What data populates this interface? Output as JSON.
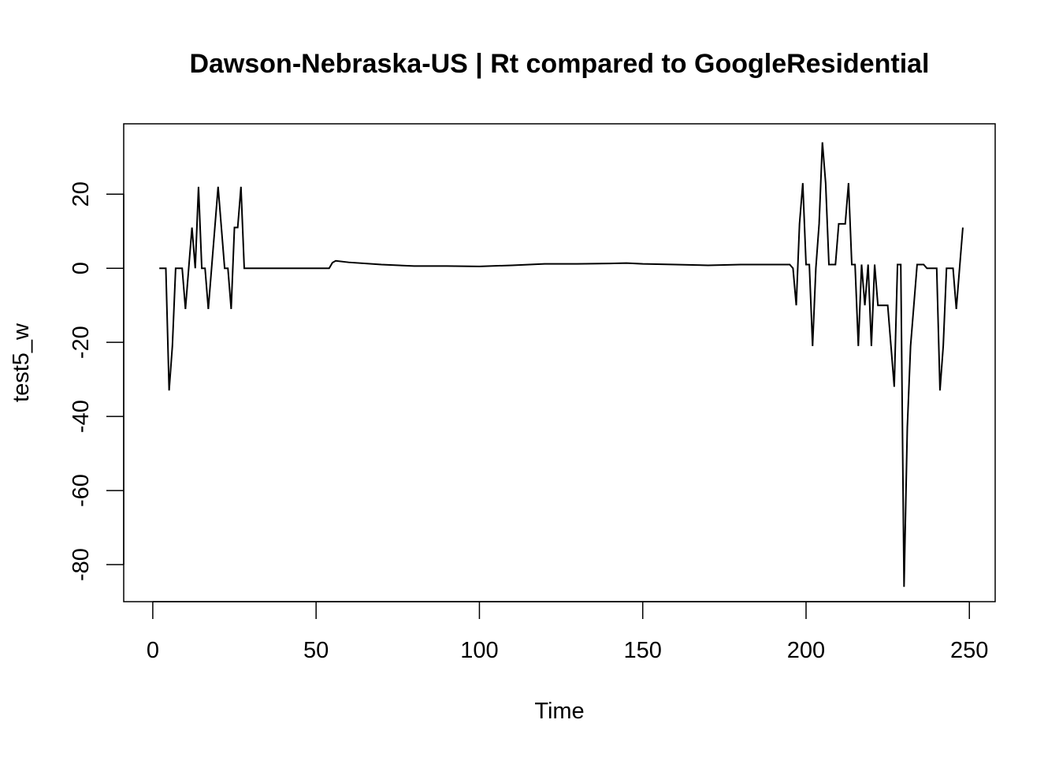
{
  "chart_data": {
    "type": "line",
    "title": "Dawson-Nebraska-US | Rt compared to GoogleResidential",
    "xlabel": "Time",
    "ylabel": "test5_w",
    "xlim": [
      -8.9,
      257.9
    ],
    "ylim": [
      -90,
      39
    ],
    "x_ticks": [
      0,
      50,
      100,
      150,
      200,
      250
    ],
    "y_ticks": [
      -80,
      -60,
      -40,
      -20,
      0,
      20
    ],
    "x_tick_labels": [
      "0",
      "50",
      "100",
      "150",
      "200",
      "250"
    ],
    "y_tick_labels": [
      "-80",
      "-60",
      "-40",
      "-20",
      "0",
      "20"
    ],
    "grid": false,
    "legend": "none",
    "line_color": "#000000",
    "series": [
      {
        "points": [
          [
            2,
            0
          ],
          [
            3,
            0
          ],
          [
            4,
            0
          ],
          [
            5,
            -33
          ],
          [
            6,
            -21
          ],
          [
            7,
            0
          ],
          [
            8,
            0
          ],
          [
            9,
            0
          ],
          [
            10,
            -11
          ],
          [
            11,
            0
          ],
          [
            12,
            11
          ],
          [
            13,
            0
          ],
          [
            14,
            22
          ],
          [
            15,
            0
          ],
          [
            16,
            0
          ],
          [
            17,
            -11
          ],
          [
            18,
            0
          ],
          [
            19,
            11
          ],
          [
            20,
            22
          ],
          [
            21,
            11
          ],
          [
            22,
            0
          ],
          [
            23,
            0
          ],
          [
            24,
            -11
          ],
          [
            25,
            11
          ],
          [
            26,
            11
          ],
          [
            27,
            22
          ],
          [
            28,
            0
          ],
          [
            29,
            0
          ],
          [
            35,
            0
          ],
          [
            45,
            0
          ],
          [
            54,
            0
          ],
          [
            55,
            1.5
          ],
          [
            56,
            2
          ],
          [
            60,
            1.6
          ],
          [
            70,
            1
          ],
          [
            80,
            0.6
          ],
          [
            90,
            0.6
          ],
          [
            100,
            0.5
          ],
          [
            110,
            0.8
          ],
          [
            120,
            1.2
          ],
          [
            130,
            1.2
          ],
          [
            140,
            1.3
          ],
          [
            145,
            1.4
          ],
          [
            150,
            1.2
          ],
          [
            160,
            1
          ],
          [
            170,
            0.8
          ],
          [
            180,
            1
          ],
          [
            190,
            1
          ],
          [
            195,
            1
          ],
          [
            196,
            0
          ],
          [
            197,
            -10
          ],
          [
            198,
            12
          ],
          [
            199,
            23
          ],
          [
            200,
            1
          ],
          [
            201,
            1
          ],
          [
            202,
            -21
          ],
          [
            203,
            0
          ],
          [
            204,
            12
          ],
          [
            205,
            34
          ],
          [
            206,
            23
          ],
          [
            207,
            1
          ],
          [
            208,
            1
          ],
          [
            209,
            1
          ],
          [
            210,
            12
          ],
          [
            211,
            12
          ],
          [
            212,
            12
          ],
          [
            213,
            23
          ],
          [
            214,
            1
          ],
          [
            215,
            1
          ],
          [
            216,
            -21
          ],
          [
            217,
            1
          ],
          [
            218,
            -10
          ],
          [
            219,
            1
          ],
          [
            220,
            -21
          ],
          [
            221,
            1
          ],
          [
            222,
            -10
          ],
          [
            223,
            -10
          ],
          [
            224,
            -10
          ],
          [
            225,
            -10
          ],
          [
            226,
            -21
          ],
          [
            227,
            -32
          ],
          [
            228,
            1
          ],
          [
            229,
            1
          ],
          [
            230,
            -86
          ],
          [
            231,
            -43
          ],
          [
            232,
            -21
          ],
          [
            233,
            -10
          ],
          [
            234,
            1
          ],
          [
            235,
            1
          ],
          [
            236,
            1
          ],
          [
            237,
            0
          ],
          [
            238,
            0
          ],
          [
            239,
            0
          ],
          [
            240,
            0
          ],
          [
            241,
            -33
          ],
          [
            242,
            -21
          ],
          [
            243,
            0
          ],
          [
            244,
            0
          ],
          [
            245,
            0
          ],
          [
            246,
            -11
          ],
          [
            247,
            0
          ],
          [
            248,
            11
          ]
        ]
      }
    ]
  }
}
